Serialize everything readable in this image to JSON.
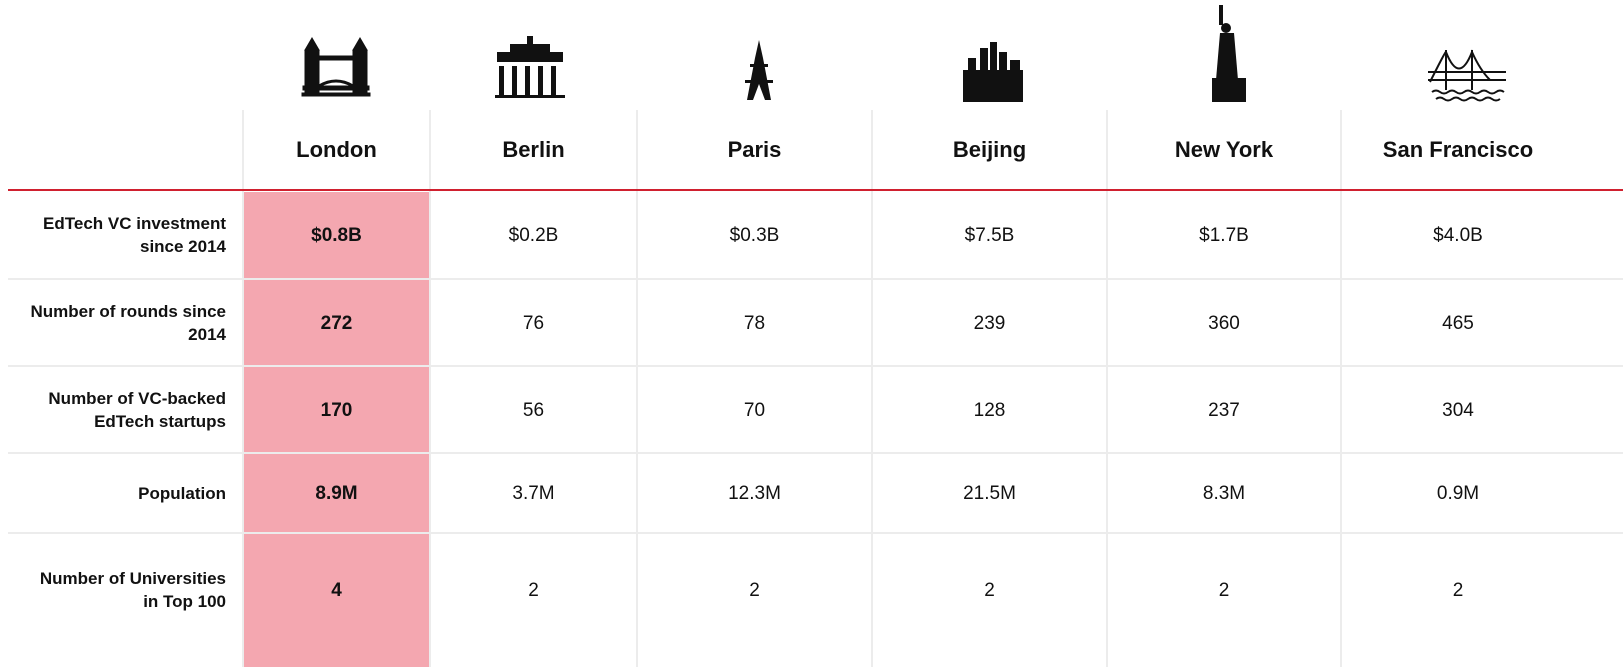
{
  "table": {
    "columns": [
      "London",
      "Berlin",
      "Paris",
      "Beijing",
      "New York",
      "San Francisco"
    ],
    "rows": [
      {
        "label": "EdTech VC investment since 2014",
        "cells": [
          "$0.8B",
          "$0.2B",
          "$0.3B",
          "$7.5B",
          "$1.7B",
          "$4.0B"
        ]
      },
      {
        "label": "Number of rounds since 2014",
        "cells": [
          "272",
          "76",
          "78",
          "239",
          "360",
          "465"
        ]
      },
      {
        "label": "Number of VC-backed EdTech startups",
        "cells": [
          "170",
          "56",
          "70",
          "128",
          "237",
          "304"
        ]
      },
      {
        "label": "Population",
        "cells": [
          "8.9M",
          "3.7M",
          "12.3M",
          "21.5M",
          "8.3M",
          "0.9M"
        ]
      },
      {
        "label": "Number of Universities in Top 100",
        "cells": [
          "4",
          "2",
          "2",
          "2",
          "2",
          "2"
        ]
      }
    ]
  }
}
